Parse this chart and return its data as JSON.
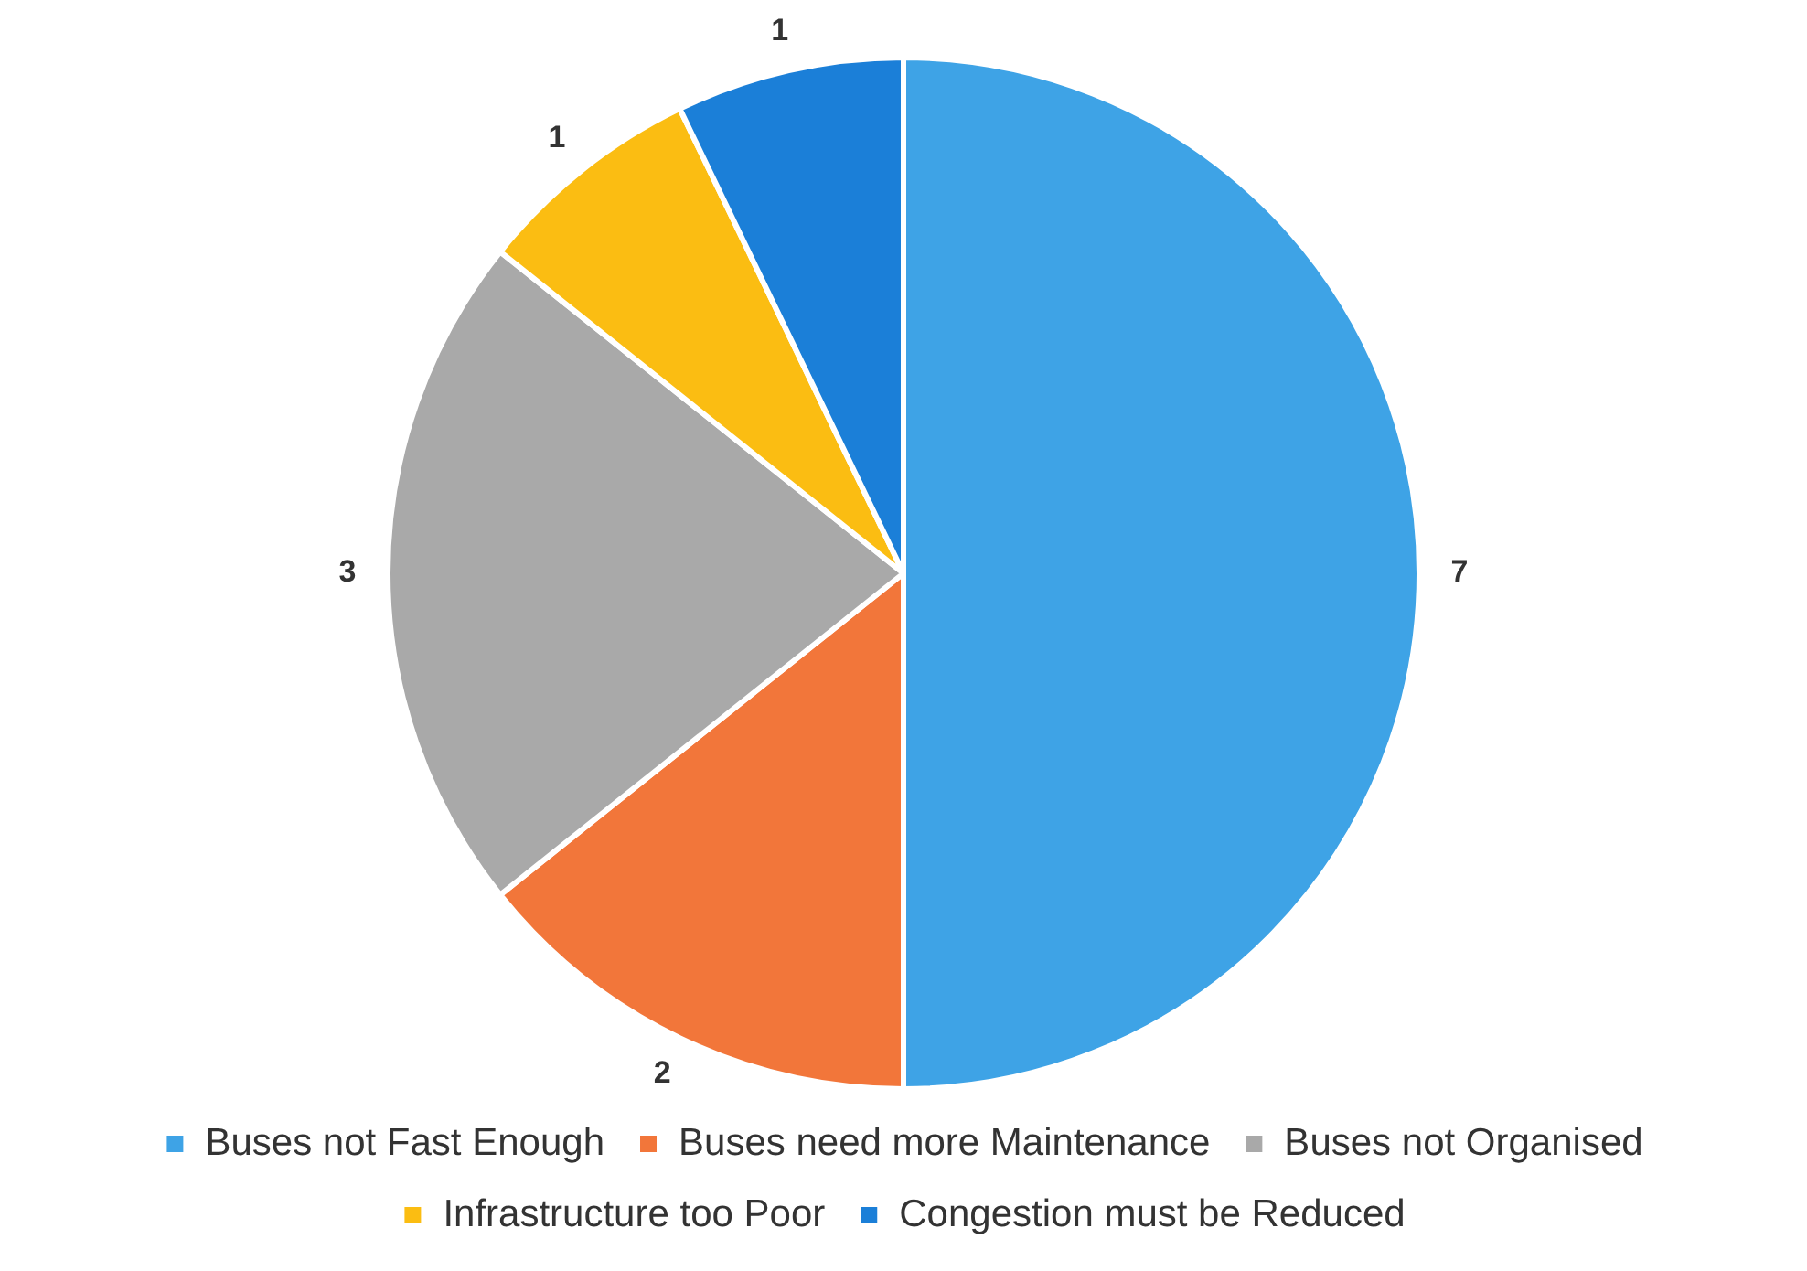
{
  "chart_data": {
    "type": "pie",
    "categories": [
      "Buses not Fast Enough",
      "Buses need more Maintenance",
      "Buses not Organised",
      "Infrastructure too Poor",
      "Congestion must be Reduced"
    ],
    "values": [
      7,
      2,
      3,
      1,
      1
    ],
    "colors": [
      "#3ea3e6",
      "#f2763a",
      "#a9a9a9",
      "#fbbd12",
      "#1b7fd8"
    ],
    "data_labels": true,
    "legend": "bottom"
  }
}
